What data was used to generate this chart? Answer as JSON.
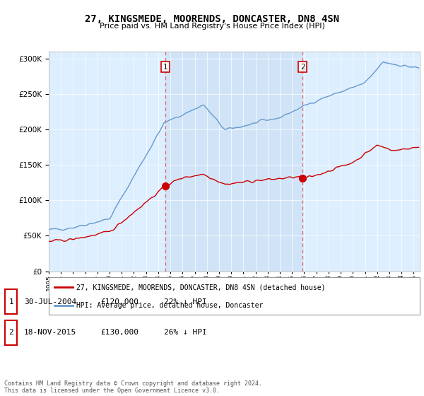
{
  "title": "27, KINGSMEDE, MOORENDS, DONCASTER, DN8 4SN",
  "subtitle": "Price paid vs. HM Land Registry's House Price Index (HPI)",
  "legend_line1": "27, KINGSMEDE, MOORENDS, DONCASTER, DN8 4SN (detached house)",
  "legend_line2": "HPI: Average price, detached house, Doncaster",
  "footer": "Contains HM Land Registry data © Crown copyright and database right 2024.\nThis data is licensed under the Open Government Licence v3.0.",
  "sale1_date": "30-JUL-2004",
  "sale1_price": "£120,000",
  "sale1_hpi": "22% ↓ HPI",
  "sale2_date": "18-NOV-2015",
  "sale2_price": "£130,000",
  "sale2_hpi": "26% ↓ HPI",
  "sale1_year": 2004.58,
  "sale1_value": 120000,
  "sale2_year": 2015.88,
  "sale2_value": 130000,
  "red_color": "#cc0000",
  "blue_color": "#6699cc",
  "vline_color": "#dd6666",
  "plot_bg": "#ddeeff",
  "plot_bg_highlight": "#cce0f5",
  "ylim": [
    0,
    310000
  ],
  "xlim_start": 1995.0,
  "xlim_end": 2025.5,
  "yticks": [
    0,
    50000,
    100000,
    150000,
    200000,
    250000,
    300000
  ]
}
